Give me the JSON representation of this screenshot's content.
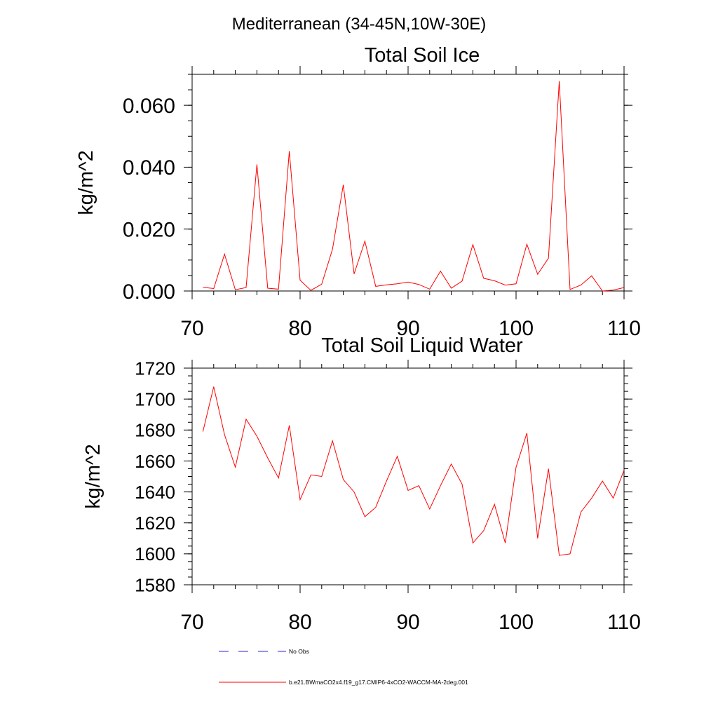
{
  "page": {
    "title": "Mediterranean (34-45N,10W-30E)"
  },
  "colors": {
    "series": "#ff0000",
    "obs": "#2b2bd0",
    "axis": "#000000"
  },
  "chart_data": [
    {
      "type": "line",
      "title": "Total Soil Ice",
      "xlabel": "",
      "ylabel": "kg/m^2",
      "xlim": [
        70,
        110
      ],
      "ylim": [
        0,
        0.07
      ],
      "xticks": [
        70,
        80,
        90,
        100,
        110
      ],
      "xtick_labels": [
        "70",
        "80",
        "90",
        "100",
        "110"
      ],
      "yticks": [
        0,
        0.02,
        0.04,
        0.06
      ],
      "ytick_labels": [
        "0.000",
        "0.020",
        "0.040",
        "0.060"
      ],
      "y_minor_step": 0.005,
      "x": [
        71,
        72,
        73,
        74,
        75,
        76,
        77,
        78,
        79,
        80,
        81,
        82,
        83,
        84,
        85,
        86,
        87,
        88,
        89,
        90,
        91,
        92,
        93,
        94,
        95,
        96,
        97,
        98,
        99,
        100,
        101,
        102,
        103,
        104,
        105,
        106,
        107,
        108,
        109,
        110
      ],
      "series": [
        {
          "name": "b.e21.BWmaCO2x4.f19_g17.CMIP6-4xCO2-WACCM-MA-2deg.001",
          "values": [
            0.0012,
            0.0008,
            0.0119,
            0.0004,
            0.0011,
            0.0409,
            0.0009,
            0.0006,
            0.0452,
            0.0035,
            0.0002,
            0.0022,
            0.0135,
            0.0343,
            0.0055,
            0.0161,
            0.0015,
            0.002,
            0.0023,
            0.0029,
            0.0021,
            0.0006,
            0.0064,
            0.0009,
            0.0032,
            0.015,
            0.0041,
            0.0033,
            0.0019,
            0.0023,
            0.0151,
            0.0054,
            0.0106,
            0.0678,
            0.0005,
            0.0019,
            0.0049,
            0.0,
            0.0003,
            0.0011
          ]
        }
      ]
    },
    {
      "type": "line",
      "title": "Total Soil Liquid Water",
      "xlabel": "",
      "ylabel": "kg/m^2",
      "xlim": [
        70,
        110
      ],
      "ylim": [
        1580,
        1720
      ],
      "xticks": [
        70,
        80,
        90,
        100,
        110
      ],
      "xtick_labels": [
        "70",
        "80",
        "90",
        "100",
        "110"
      ],
      "yticks": [
        1580,
        1600,
        1620,
        1640,
        1660,
        1680,
        1700,
        1720
      ],
      "ytick_labels": [
        "1580",
        "1600",
        "1620",
        "1640",
        "1660",
        "1680",
        "1700",
        "1720"
      ],
      "y_minor_step": 5,
      "x": [
        71,
        72,
        73,
        74,
        75,
        76,
        77,
        78,
        79,
        80,
        81,
        82,
        83,
        84,
        85,
        86,
        87,
        88,
        89,
        90,
        91,
        92,
        93,
        94,
        95,
        96,
        97,
        98,
        99,
        100,
        101,
        102,
        103,
        104,
        105,
        106,
        107,
        108,
        109,
        110
      ],
      "series": [
        {
          "name": "b.e21.BWmaCO2x4.f19_g17.CMIP6-4xCO2-WACCM-MA-2deg.001",
          "values": [
            1679,
            1708,
            1677,
            1656,
            1687,
            1676,
            1662,
            1649,
            1683,
            1635,
            1651,
            1650,
            1673,
            1648,
            1640,
            1624,
            1630,
            1647,
            1663,
            1641,
            1644,
            1629,
            1644,
            1658,
            1645,
            1607,
            1615,
            1632,
            1607,
            1656,
            1678,
            1610,
            1655,
            1599,
            1600,
            1627,
            1636,
            1647,
            1636,
            1654
          ]
        }
      ]
    }
  ],
  "legend": [
    {
      "label": "No Obs",
      "style": "dashed",
      "color": "#2b2bd0"
    },
    {
      "label": "b.e21.BWmaCO2x4.f19_g17.CMIP6-4xCO2-WACCM-MA-2deg.001",
      "style": "solid",
      "color": "#ff0000"
    }
  ]
}
